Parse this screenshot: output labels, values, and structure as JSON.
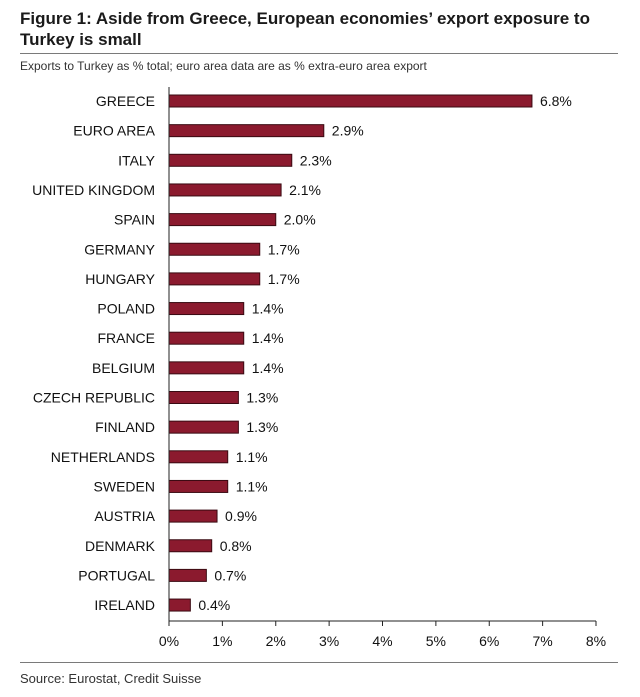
{
  "figure": {
    "title": "Figure 1: Aside from Greece, European economies’ export exposure to Turkey is small",
    "subtitle": "Exports to Turkey as % total; euro area data are as % extra-euro area export",
    "source": "Source: Eurostat, Credit Suisse"
  },
  "chart_data": {
    "type": "bar",
    "orientation": "horizontal",
    "title": "Figure 1: Aside from Greece, European economies’ export exposure to Turkey is small",
    "subtitle": "Exports to Turkey as % total; euro area data are as % extra-euro area export",
    "xlabel": "",
    "ylabel": "",
    "categories": [
      "GREECE",
      "EURO AREA",
      "ITALY",
      "UNITED KINGDOM",
      "SPAIN",
      "GERMANY",
      "HUNGARY",
      "POLAND",
      "FRANCE",
      "BELGIUM",
      "CZECH REPUBLIC",
      "FINLAND",
      "NETHERLANDS",
      "SWEDEN",
      "AUSTRIA",
      "DENMARK",
      "PORTUGAL",
      "IRELAND"
    ],
    "values": [
      6.8,
      2.9,
      2.3,
      2.1,
      2.0,
      1.7,
      1.7,
      1.4,
      1.4,
      1.4,
      1.3,
      1.3,
      1.1,
      1.1,
      0.9,
      0.8,
      0.7,
      0.4
    ],
    "value_labels": [
      "6.8%",
      "2.9%",
      "2.3%",
      "2.1%",
      "2.0%",
      "1.7%",
      "1.7%",
      "1.4%",
      "1.4%",
      "1.4%",
      "1.3%",
      "1.3%",
      "1.1%",
      "1.1%",
      "0.9%",
      "0.8%",
      "0.7%",
      "0.4%"
    ],
    "xlim": [
      0,
      8
    ],
    "xticks": [
      0,
      1,
      2,
      3,
      4,
      5,
      6,
      7,
      8
    ],
    "xtick_labels": [
      "0%",
      "1%",
      "2%",
      "3%",
      "4%",
      "5%",
      "6%",
      "7%",
      "8%"
    ],
    "grid": false,
    "legend": "none",
    "bar_color": "#8b1a2e",
    "bar_border_color": "#3a0a12"
  }
}
